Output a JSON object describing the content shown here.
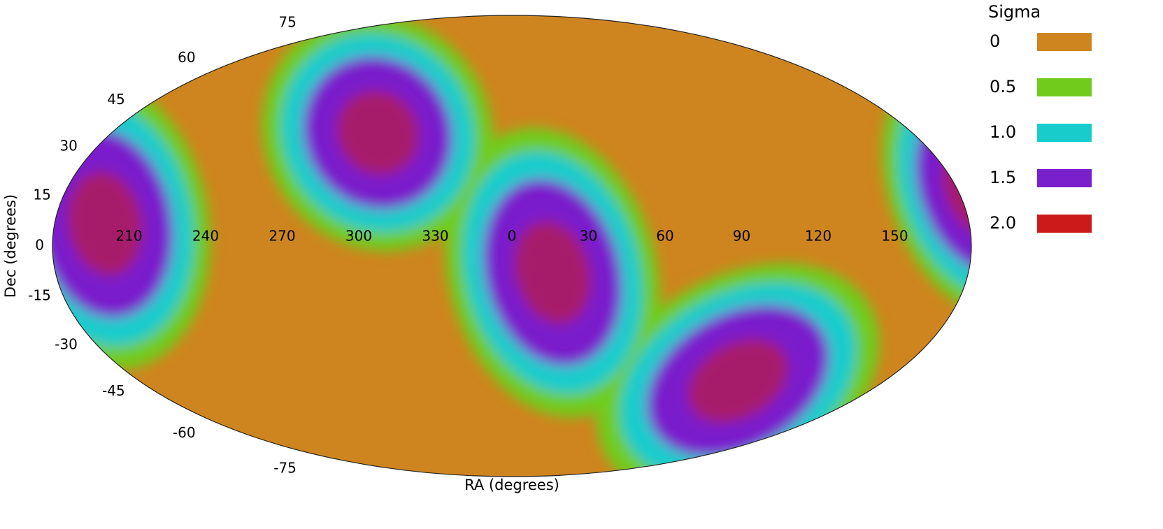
{
  "chart_data": {
    "type": "mollweide",
    "xlabel": "RA (degrees)",
    "ylabel": "Dec (degrees)",
    "xticks": [
      210,
      240,
      270,
      300,
      330,
      0,
      30,
      60,
      90,
      120,
      150
    ],
    "yticks": [
      75,
      60,
      45,
      30,
      15,
      0,
      -15,
      -30,
      -45,
      -60,
      -75
    ],
    "colorbar": {
      "title": "Sigma",
      "levels": [
        0,
        0.5,
        {
          "value": 1,
          "label": "1.0"
        },
        1.5,
        {
          "value": 2,
          "label": "2.0"
        }
      ],
      "colors": [
        "#cf851f",
        "#6fcc1c",
        "#18cccc",
        "#7a1fcc",
        "#cc1a1a"
      ]
    }
  }
}
